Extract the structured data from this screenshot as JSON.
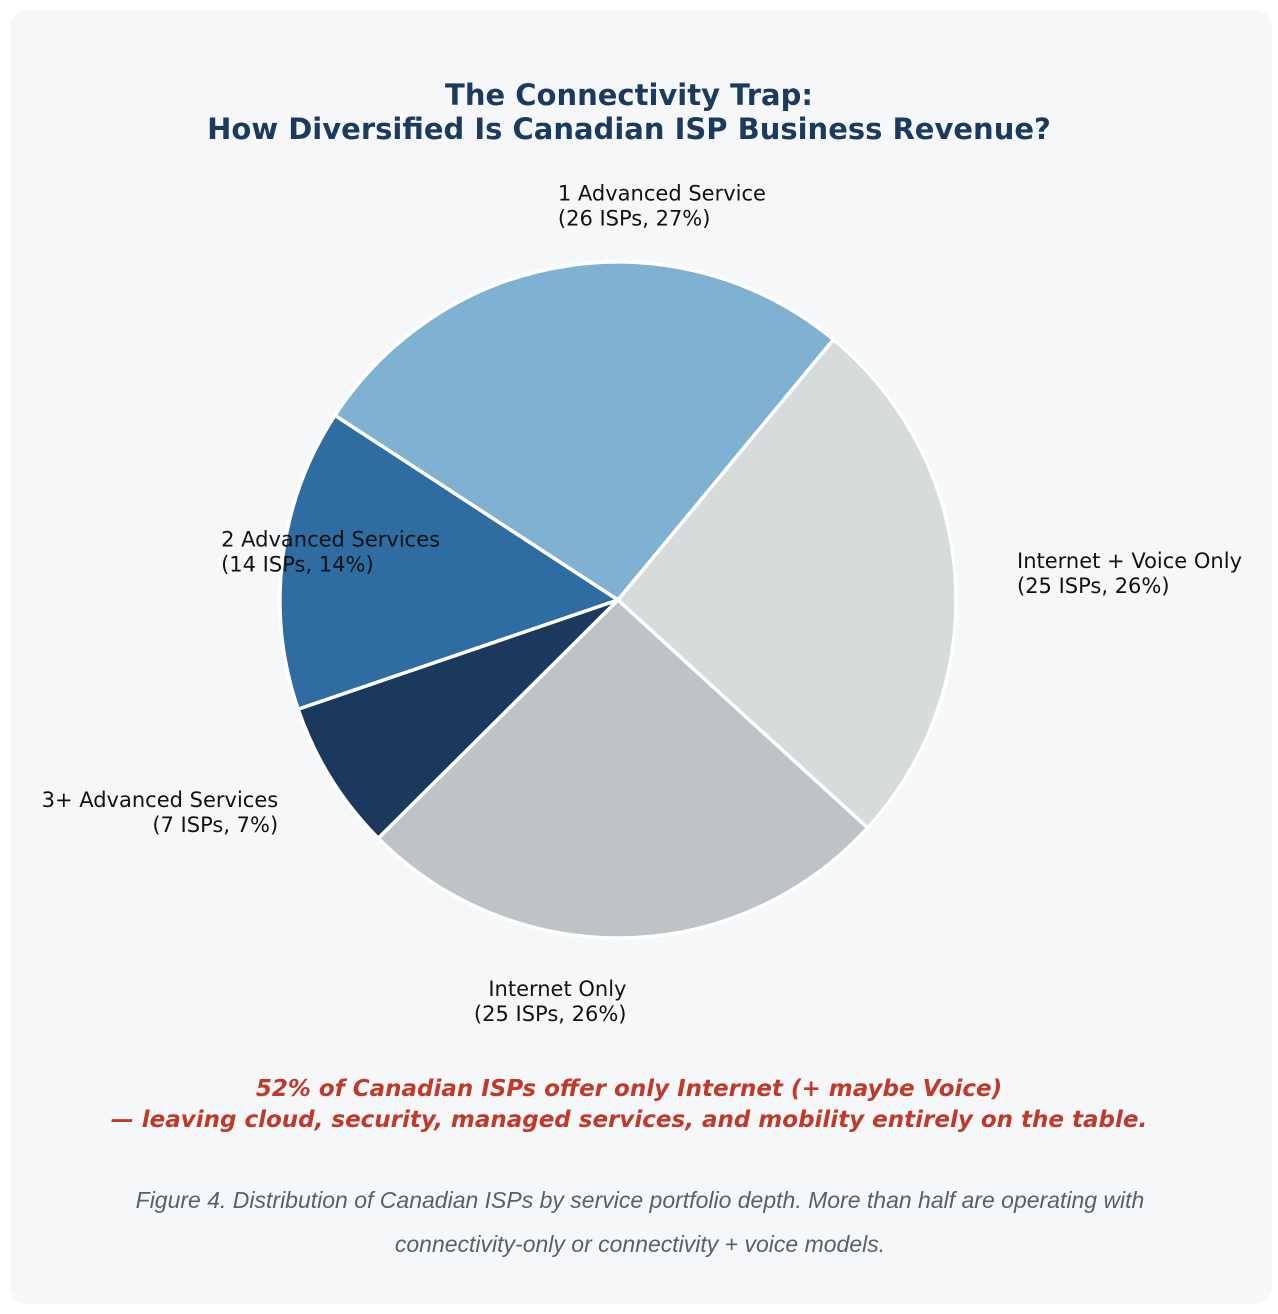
{
  "chart_data": {
    "type": "pie",
    "title": [
      "The Connectivity Trap:",
      "How Diversified Is Canadian ISP Business Revenue?"
    ],
    "start_angle_deg": 50.4,
    "direction": "counterclockwise",
    "slices": [
      {
        "name": "1 Advanced Service",
        "count": 26,
        "percent": 27,
        "label_line1": "1 Advanced Service",
        "label_line2": "(26 ISPs, 27%)",
        "color": "#7fb1d3",
        "label_align": "start"
      },
      {
        "name": "2 Advanced Services",
        "count": 14,
        "percent": 14,
        "label_line1": "2 Advanced Services",
        "label_line2": "(14 ISPs, 14%)",
        "color": "#2e6ca2",
        "label_align": "start"
      },
      {
        "name": "3+ Advanced Services",
        "count": 7,
        "percent": 7,
        "label_line1": "3+ Advanced Services",
        "label_line2": "(7 ISPs, 7%)",
        "color": "#1b395d",
        "label_align": "end"
      },
      {
        "name": "Internet Only",
        "count": 25,
        "percent": 26,
        "label_line1": "Internet Only",
        "label_line2": "(25 ISPs, 26%)",
        "color": "#bec3c6",
        "label_align": "end"
      },
      {
        "name": "Internet + Voice Only",
        "count": 25,
        "percent": 26,
        "label_line1": "Internet + Voice Only",
        "label_line2": "(25 ISPs, 26%)",
        "color": "#d6dbdb",
        "label_align": "start"
      }
    ],
    "slice_border_color": "#ffffff",
    "legend": "none"
  },
  "callout": {
    "line1": "52% of Canadian ISPs offer only Internet (+ maybe Voice)",
    "line2": "— leaving cloud, security, managed services, and mobility entirely on the table.",
    "color": "#c0392b"
  },
  "caption": {
    "text": "Figure 4. Distribution of Canadian ISPs by service portfolio depth. More than half are operating with connectivity-only or connectivity + voice models."
  },
  "colors": {
    "title": "#1b3a5e",
    "card_background": "#f6f7f9"
  }
}
